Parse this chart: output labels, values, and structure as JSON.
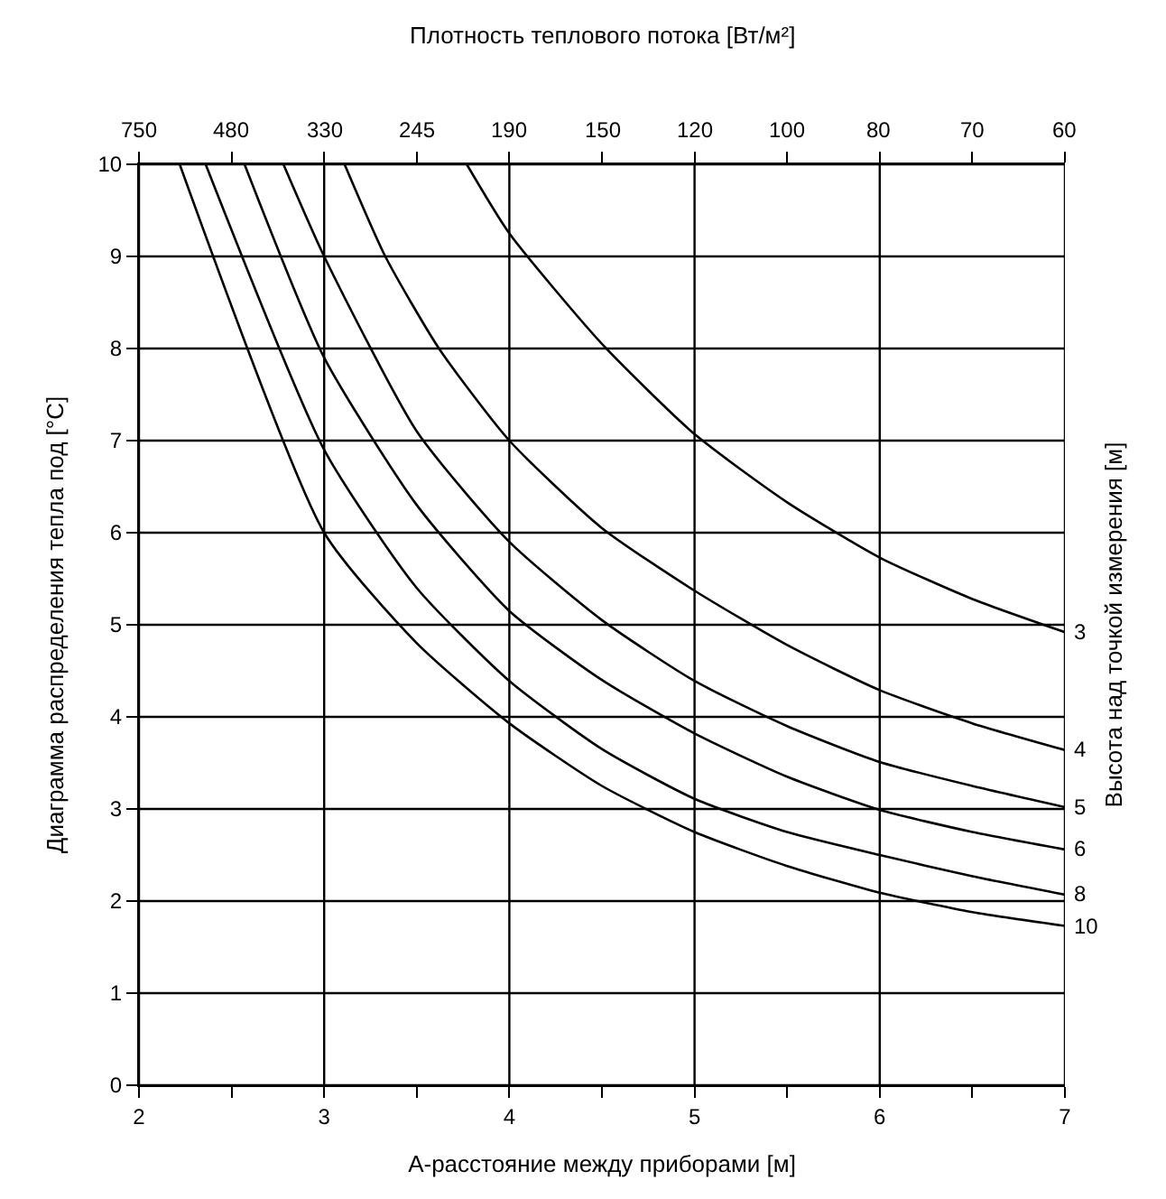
{
  "chart_data": {
    "type": "line",
    "x2label": "Плотность теплового потока [Вт/м²]",
    "xlabel": "А-расстояние между приборами [м]",
    "ylabel": "Диаграмма распределения тепла под [°C]",
    "y2label": "Высота над точкой измерения [м]",
    "xlim": [
      2,
      7
    ],
    "ylim": [
      0,
      10
    ],
    "xticks": [
      2,
      {
        "value": 2.5,
        "label": null
      },
      3,
      {
        "value": 3.5,
        "label": null
      },
      4,
      {
        "value": 4.5,
        "label": null
      },
      5,
      {
        "value": 5.5,
        "label": null
      },
      6,
      {
        "value": 6.5,
        "label": null
      },
      7
    ],
    "yticks": [
      0,
      1,
      2,
      3,
      4,
      5,
      6,
      7,
      8,
      9,
      10
    ],
    "annotations": [
      "750",
      "480",
      "330",
      "245",
      "190",
      "150",
      "120",
      "100",
      "80",
      "70",
      "60"
    ],
    "grid": true,
    "legend": false,
    "marker": "none",
    "line_style": "solid",
    "series": [
      {
        "name": "3",
        "color": "#000000",
        "x": [
          3.77,
          4,
          4.5,
          5,
          5.5,
          6,
          6.5,
          7
        ],
        "values": [
          10,
          9.25,
          8.05,
          7.07,
          6.33,
          5.73,
          5.28,
          4.92
        ]
      },
      {
        "name": "4",
        "color": "#000000",
        "x": [
          3.11,
          3.33,
          3.62,
          4,
          4.5,
          5,
          5.5,
          6,
          6.5,
          7
        ],
        "values": [
          10,
          9,
          8,
          7,
          6.05,
          5.37,
          4.78,
          4.29,
          3.93,
          3.64
        ]
      },
      {
        "name": "5",
        "color": "#000000",
        "x": [
          2.78,
          3,
          3.5,
          4,
          4.5,
          5,
          5.5,
          6,
          6.5,
          7
        ],
        "values": [
          10,
          9.0,
          7.1,
          5.9,
          5.05,
          4.39,
          3.9,
          3.51,
          3.25,
          3.02
        ]
      },
      {
        "name": "6",
        "color": "#000000",
        "x": [
          2.57,
          3,
          3.5,
          4,
          4.5,
          5,
          5.5,
          6,
          6.5,
          7
        ],
        "values": [
          10,
          7.9,
          6.3,
          5.15,
          4.4,
          3.82,
          3.35,
          2.99,
          2.75,
          2.56
        ]
      },
      {
        "name": "8",
        "color": "#000000",
        "x": [
          2.36,
          3,
          3.5,
          4,
          4.5,
          5,
          5.5,
          6,
          6.5,
          7
        ],
        "values": [
          10,
          6.9,
          5.4,
          4.39,
          3.65,
          3.11,
          2.75,
          2.5,
          2.27,
          2.07
        ]
      },
      {
        "name": "10",
        "color": "#000000",
        "x": [
          2.22,
          3,
          3.5,
          4,
          4.5,
          5,
          5.5,
          6,
          6.5,
          7
        ],
        "values": [
          10,
          6.0,
          4.8,
          3.93,
          3.25,
          2.75,
          2.38,
          2.09,
          1.88,
          1.73
        ]
      }
    ]
  }
}
